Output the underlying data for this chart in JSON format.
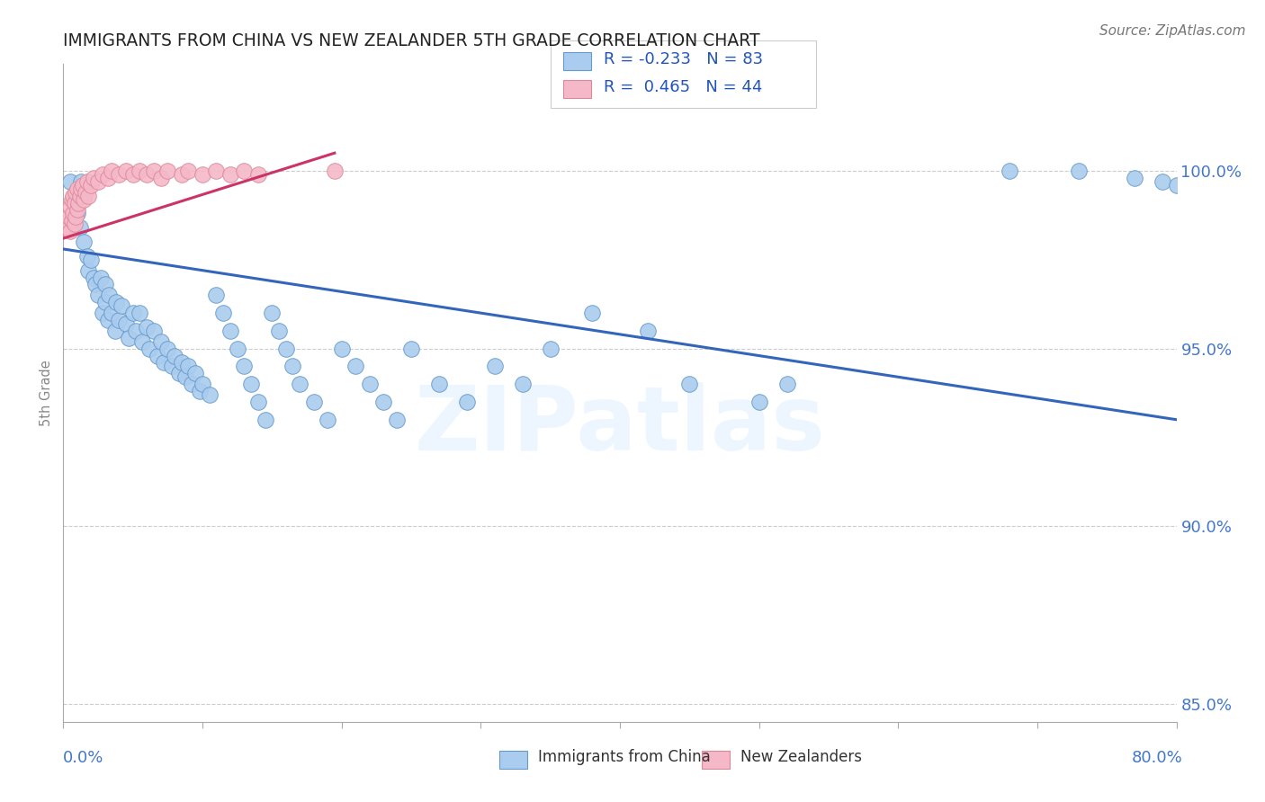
{
  "title": "IMMIGRANTS FROM CHINA VS NEW ZEALANDER 5TH GRADE CORRELATION CHART",
  "source": "Source: ZipAtlas.com",
  "ylabel": "5th Grade",
  "yticks": [
    0.85,
    0.9,
    0.95,
    1.0
  ],
  "ytick_labels": [
    "85.0%",
    "90.0%",
    "95.0%",
    "100.0%"
  ],
  "xlim": [
    0.0,
    0.8
  ],
  "ylim": [
    0.845,
    1.03
  ],
  "blue_label": "Immigrants from China",
  "pink_label": "New Zealanders",
  "blue_R": "-0.233",
  "blue_N": "83",
  "pink_R": "0.465",
  "pink_N": "44",
  "blue_color": "#aaccee",
  "blue_edge_color": "#6699cc",
  "blue_line_color": "#3366bb",
  "pink_color": "#f5b8c8",
  "pink_edge_color": "#dd8899",
  "pink_line_color": "#cc3366",
  "blue_scatter_x": [
    0.005,
    0.008,
    0.01,
    0.012,
    0.013,
    0.015,
    0.017,
    0.018,
    0.02,
    0.022,
    0.023,
    0.025,
    0.027,
    0.028,
    0.03,
    0.03,
    0.032,
    0.033,
    0.035,
    0.037,
    0.038,
    0.04,
    0.042,
    0.045,
    0.047,
    0.05,
    0.052,
    0.055,
    0.057,
    0.06,
    0.062,
    0.065,
    0.068,
    0.07,
    0.072,
    0.075,
    0.078,
    0.08,
    0.083,
    0.085,
    0.088,
    0.09,
    0.092,
    0.095,
    0.098,
    0.1,
    0.105,
    0.11,
    0.115,
    0.12,
    0.125,
    0.13,
    0.135,
    0.14,
    0.145,
    0.15,
    0.155,
    0.16,
    0.165,
    0.17,
    0.18,
    0.19,
    0.2,
    0.21,
    0.22,
    0.23,
    0.24,
    0.25,
    0.27,
    0.29,
    0.31,
    0.33,
    0.35,
    0.38,
    0.42,
    0.45,
    0.5,
    0.52,
    0.68,
    0.73,
    0.77,
    0.79,
    0.8
  ],
  "blue_scatter_y": [
    0.997,
    0.992,
    0.988,
    0.984,
    0.997,
    0.98,
    0.976,
    0.972,
    0.975,
    0.97,
    0.968,
    0.965,
    0.97,
    0.96,
    0.968,
    0.963,
    0.958,
    0.965,
    0.96,
    0.955,
    0.963,
    0.958,
    0.962,
    0.957,
    0.953,
    0.96,
    0.955,
    0.96,
    0.952,
    0.956,
    0.95,
    0.955,
    0.948,
    0.952,
    0.946,
    0.95,
    0.945,
    0.948,
    0.943,
    0.946,
    0.942,
    0.945,
    0.94,
    0.943,
    0.938,
    0.94,
    0.937,
    0.965,
    0.96,
    0.955,
    0.95,
    0.945,
    0.94,
    0.935,
    0.93,
    0.96,
    0.955,
    0.95,
    0.945,
    0.94,
    0.935,
    0.93,
    0.95,
    0.945,
    0.94,
    0.935,
    0.93,
    0.95,
    0.94,
    0.935,
    0.945,
    0.94,
    0.95,
    0.96,
    0.955,
    0.94,
    0.935,
    0.94,
    1.0,
    1.0,
    0.998,
    0.997,
    0.996
  ],
  "pink_scatter_x": [
    0.003,
    0.004,
    0.005,
    0.005,
    0.006,
    0.006,
    0.007,
    0.007,
    0.008,
    0.008,
    0.009,
    0.009,
    0.01,
    0.01,
    0.011,
    0.012,
    0.013,
    0.014,
    0.015,
    0.016,
    0.017,
    0.018,
    0.02,
    0.022,
    0.025,
    0.028,
    0.032,
    0.035,
    0.04,
    0.045,
    0.05,
    0.055,
    0.06,
    0.065,
    0.07,
    0.075,
    0.085,
    0.09,
    0.1,
    0.11,
    0.12,
    0.13,
    0.14,
    0.195
  ],
  "pink_scatter_y": [
    0.984,
    0.987,
    0.983,
    0.99,
    0.986,
    0.992,
    0.988,
    0.993,
    0.985,
    0.991,
    0.987,
    0.994,
    0.989,
    0.995,
    0.991,
    0.993,
    0.995,
    0.996,
    0.992,
    0.994,
    0.997,
    0.993,
    0.996,
    0.998,
    0.997,
    0.999,
    0.998,
    1.0,
    0.999,
    1.0,
    0.999,
    1.0,
    0.999,
    1.0,
    0.998,
    1.0,
    0.999,
    1.0,
    0.999,
    1.0,
    0.999,
    1.0,
    0.999,
    1.0
  ],
  "blue_trend_x": [
    0.0,
    0.8
  ],
  "blue_trend_y": [
    0.978,
    0.93
  ],
  "pink_trend_x": [
    0.0,
    0.195
  ],
  "pink_trend_y": [
    0.981,
    1.005
  ],
  "watermark": "ZIPatlas",
  "background_color": "#ffffff"
}
